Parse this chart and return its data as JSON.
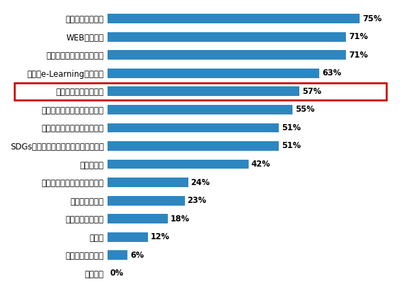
{
  "categories": [
    "特にない",
    "業績評価への連動",
    "その他",
    "啓発ポスターなど",
    "専任組織の立上",
    "行動憲章・行動規範への掲載",
    "管理職研修",
    "SDGsバッジ等のグッズの社員への配布",
    "経営方針説明会などでの言及",
    "新入社員オリエンテーション",
    "外部セミナーへの参加",
    "研修（e-Learningも含む）",
    "社報等（紙媒体）での周知",
    "WEBでの周知",
    "トップメッセージ"
  ],
  "values": [
    0,
    6,
    12,
    18,
    23,
    24,
    42,
    51,
    51,
    55,
    57,
    63,
    71,
    71,
    75
  ],
  "bar_color": "#2E86C1",
  "highlight_index": 10,
  "highlight_box_color": "#CC0000",
  "background_color": "#FFFFFF",
  "xlim": [
    0,
    88
  ],
  "bar_height": 0.52,
  "label_fontsize": 8.5,
  "value_fontsize": 8.5,
  "figsize": [
    6.0,
    4.26
  ],
  "dpi": 100
}
